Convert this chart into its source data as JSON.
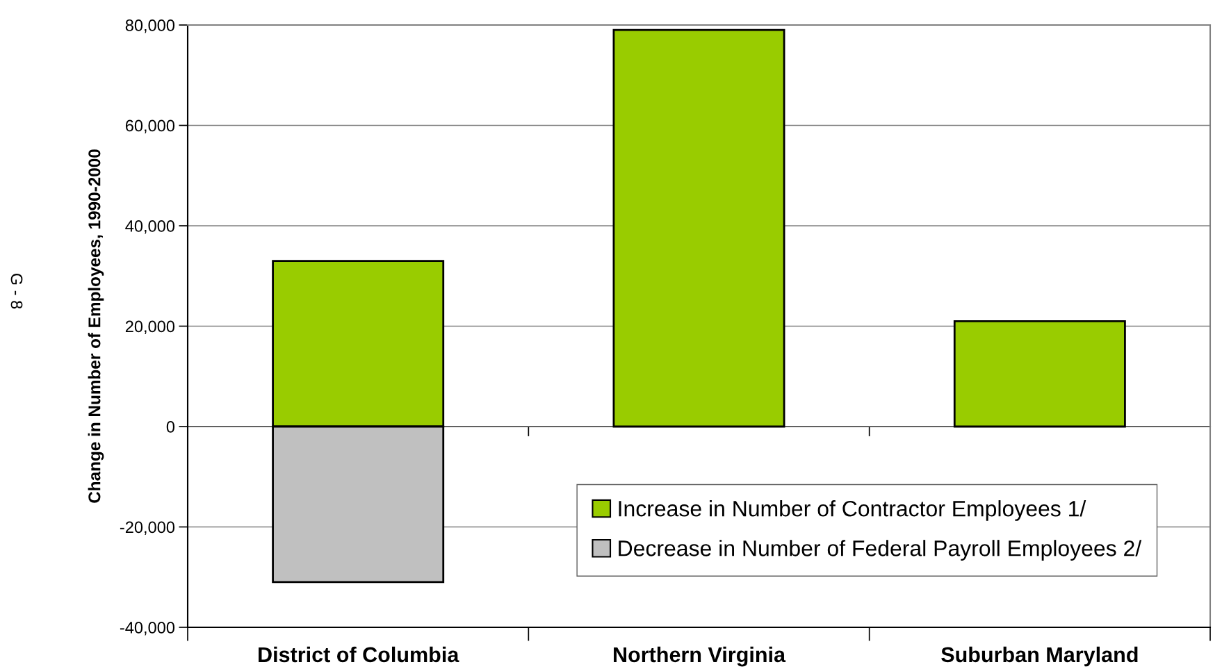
{
  "chart_data": {
    "type": "bar",
    "stacked": true,
    "ylabel": "Change in Number of Employees, 1990-2000",
    "categories": [
      "District of Columbia",
      "Northern Virginia",
      "Suburban Maryland"
    ],
    "series": [
      {
        "name": "Increase in Number of Contractor Employees 1/",
        "color": "#99cc00",
        "values": [
          33000,
          79000,
          21000
        ]
      },
      {
        "name": "Decrease in Number of Federal Payroll Employees 2/",
        "color": "#c0c0c0",
        "values": [
          -31000,
          null,
          null
        ]
      }
    ],
    "ylim": [
      -40000,
      80000
    ],
    "yticks": [
      {
        "value": -40000,
        "label": "-40,000"
      },
      {
        "value": -20000,
        "label": "-20,000"
      },
      0,
      {
        "value": 20000,
        "label": "20,000"
      },
      {
        "value": 40000,
        "label": "40,000"
      },
      {
        "value": 60000,
        "label": "60,000"
      },
      {
        "value": 80000,
        "label": "80,000"
      }
    ],
    "grid": "y",
    "legend": "bottom right",
    "annotations": [
      "G - 8"
    ]
  }
}
